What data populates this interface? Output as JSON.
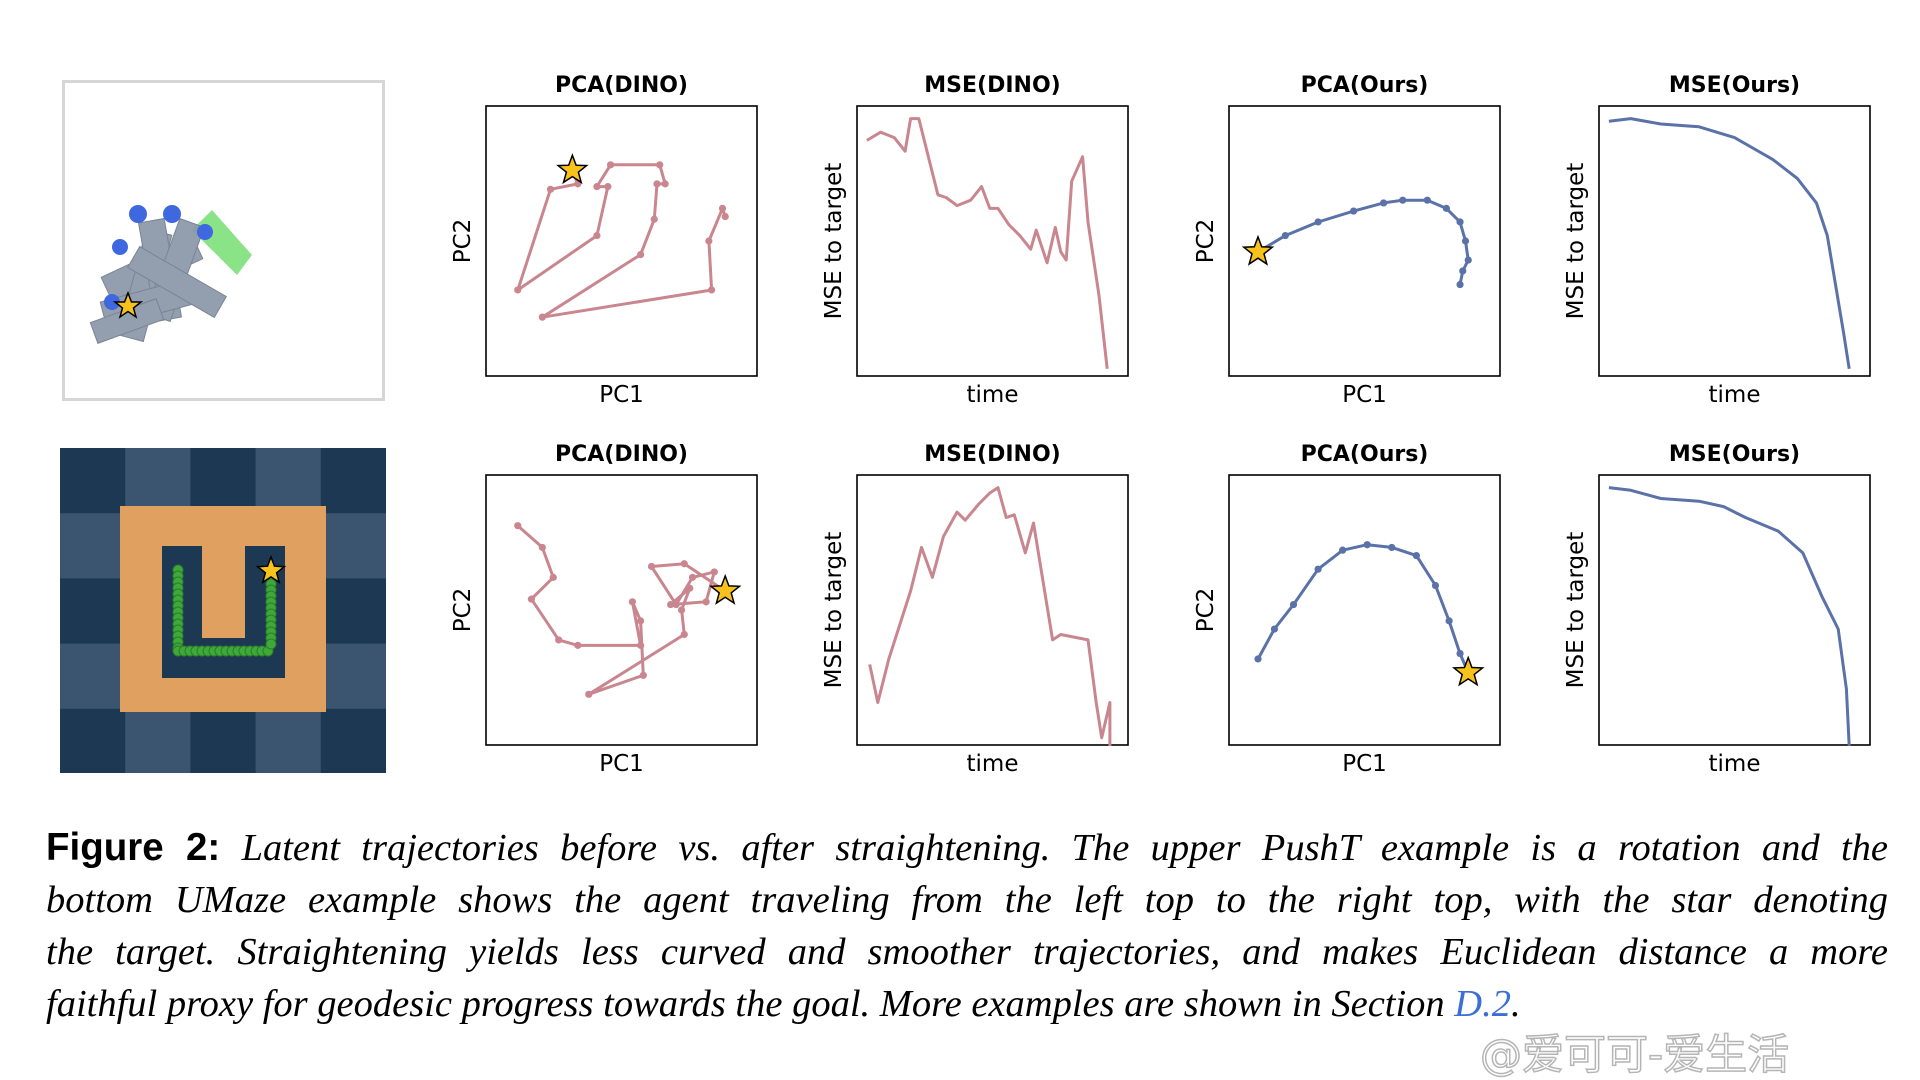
{
  "colors": {
    "dino": "#c9868f",
    "ours": "#5a72a8",
    "star": "#f7c21b",
    "link": "#3b6fd6"
  },
  "rows": [
    {
      "env": "PushT",
      "image": "pusht-rendering"
    },
    {
      "env": "UMaze",
      "image": "umaze-rendering"
    }
  ],
  "chart_data": [
    {
      "type": "line",
      "row": 0,
      "title": "PCA(DINO)",
      "xlabel": "PC1",
      "ylabel": "PC2",
      "series_color": "dino",
      "markers": true,
      "star_at_end": true,
      "x": [
        0.88,
        0.87,
        0.82,
        0.83,
        0.21,
        0.57,
        0.62,
        0.63,
        0.66,
        0.64,
        0.46,
        0.41,
        0.45,
        0.41,
        0.12,
        0.24,
        0.34,
        0.32
      ],
      "y": [
        0.59,
        0.62,
        0.5,
        0.32,
        0.22,
        0.45,
        0.58,
        0.71,
        0.71,
        0.78,
        0.78,
        0.7,
        0.7,
        0.52,
        0.32,
        0.69,
        0.71,
        0.76
      ]
    },
    {
      "type": "line",
      "row": 0,
      "title": "MSE(DINO)",
      "xlabel": "time",
      "ylabel": "MSE to target",
      "series_color": "dino",
      "markers": false,
      "star_at_end": false,
      "x": [
        0.04,
        0.09,
        0.14,
        0.18,
        0.2,
        0.23,
        0.3,
        0.33,
        0.37,
        0.42,
        0.46,
        0.49,
        0.52,
        0.56,
        0.6,
        0.64,
        0.66,
        0.7,
        0.73,
        0.75,
        0.77,
        0.79,
        0.83,
        0.85,
        0.89,
        0.92
      ],
      "y": [
        0.87,
        0.9,
        0.88,
        0.83,
        0.95,
        0.95,
        0.67,
        0.66,
        0.63,
        0.65,
        0.7,
        0.62,
        0.62,
        0.56,
        0.52,
        0.47,
        0.54,
        0.42,
        0.55,
        0.46,
        0.43,
        0.72,
        0.81,
        0.57,
        0.3,
        0.03
      ]
    },
    {
      "type": "line",
      "row": 0,
      "title": "PCA(Ours)",
      "xlabel": "PC1",
      "ylabel": "PC2",
      "series_color": "ours",
      "markers": true,
      "star_at_end": true,
      "x": [
        0.85,
        0.86,
        0.88,
        0.87,
        0.85,
        0.8,
        0.73,
        0.64,
        0.57,
        0.46,
        0.33,
        0.21,
        0.11
      ],
      "y": [
        0.34,
        0.39,
        0.43,
        0.5,
        0.57,
        0.62,
        0.65,
        0.65,
        0.64,
        0.61,
        0.57,
        0.52,
        0.46
      ]
    },
    {
      "type": "line",
      "row": 0,
      "title": "MSE(Ours)",
      "xlabel": "time",
      "ylabel": "MSE to target",
      "series_color": "ours",
      "markers": false,
      "star_at_end": false,
      "x": [
        0.04,
        0.12,
        0.23,
        0.37,
        0.5,
        0.57,
        0.64,
        0.73,
        0.8,
        0.84,
        0.87,
        0.9,
        0.92
      ],
      "y": [
        0.94,
        0.95,
        0.93,
        0.92,
        0.88,
        0.84,
        0.8,
        0.73,
        0.64,
        0.52,
        0.34,
        0.16,
        0.03
      ]
    },
    {
      "type": "line",
      "row": 1,
      "title": "PCA(DINO)",
      "xlabel": "PC1",
      "ylabel": "PC2",
      "series_color": "dino",
      "markers": true,
      "star_at_end": true,
      "x": [
        0.12,
        0.21,
        0.25,
        0.17,
        0.27,
        0.34,
        0.57,
        0.54,
        0.57,
        0.58,
        0.38,
        0.73,
        0.72,
        0.75,
        0.68,
        0.81,
        0.84,
        0.76,
        0.7,
        0.61,
        0.73,
        0.88
      ],
      "y": [
        0.81,
        0.73,
        0.62,
        0.54,
        0.39,
        0.37,
        0.37,
        0.53,
        0.46,
        0.26,
        0.19,
        0.41,
        0.5,
        0.58,
        0.52,
        0.53,
        0.64,
        0.62,
        0.52,
        0.66,
        0.67,
        0.57
      ]
    },
    {
      "type": "line",
      "row": 1,
      "title": "MSE(DINO)",
      "xlabel": "time",
      "ylabel": "MSE to target",
      "series_color": "dino",
      "markers": false,
      "star_at_end": false,
      "x": [
        0.05,
        0.08,
        0.12,
        0.2,
        0.24,
        0.28,
        0.32,
        0.37,
        0.4,
        0.45,
        0.49,
        0.52,
        0.55,
        0.58,
        0.62,
        0.65,
        0.72,
        0.75,
        0.85,
        0.88,
        0.9,
        0.93,
        0.93
      ],
      "y": [
        0.3,
        0.16,
        0.32,
        0.57,
        0.73,
        0.62,
        0.77,
        0.86,
        0.83,
        0.89,
        0.93,
        0.95,
        0.84,
        0.85,
        0.71,
        0.82,
        0.39,
        0.41,
        0.39,
        0.16,
        0.03,
        0.16,
        0.0
      ]
    },
    {
      "type": "line",
      "row": 1,
      "title": "PCA(Ours)",
      "xlabel": "PC1",
      "ylabel": "PC2",
      "series_color": "ours",
      "markers": true,
      "star_at_end": true,
      "x": [
        0.11,
        0.17,
        0.24,
        0.33,
        0.42,
        0.51,
        0.6,
        0.69,
        0.76,
        0.81,
        0.85,
        0.88
      ],
      "y": [
        0.32,
        0.43,
        0.52,
        0.65,
        0.72,
        0.74,
        0.73,
        0.7,
        0.59,
        0.46,
        0.34,
        0.27
      ]
    },
    {
      "type": "line",
      "row": 1,
      "title": "MSE(Ours)",
      "xlabel": "time",
      "ylabel": "MSE to target",
      "series_color": "ours",
      "markers": false,
      "star_at_end": false,
      "x": [
        0.04,
        0.12,
        0.23,
        0.37,
        0.46,
        0.54,
        0.66,
        0.75,
        0.82,
        0.88,
        0.91,
        0.92
      ],
      "y": [
        0.95,
        0.94,
        0.91,
        0.9,
        0.88,
        0.84,
        0.79,
        0.71,
        0.55,
        0.43,
        0.21,
        0.0
      ]
    }
  ],
  "caption": {
    "label": "Figure 2:",
    "line1": "Latent trajectories before vs. after straightening. The upper PushT example is a rotation and the",
    "line2": "bottom UMaze example shows the agent traveling from the left top to the right top, with the star denoting",
    "line3": "the target. Straightening yields less curved and smoother trajectories, and makes Euclidean distance a more",
    "line4": "faithful proxy for geodesic progress towards the goal. More examples are shown in Section",
    "link": "D.2",
    "end": "."
  },
  "watermark": "@爱可可-爱生活"
}
